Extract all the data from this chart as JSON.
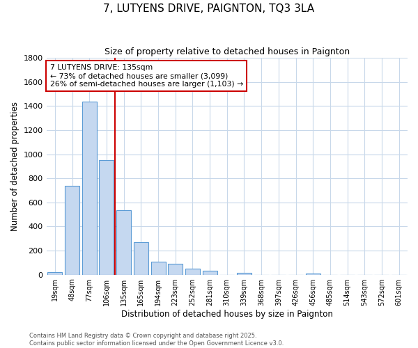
{
  "title": "7, LUTYENS DRIVE, PAIGNTON, TQ3 3LA",
  "subtitle": "Size of property relative to detached houses in Paignton",
  "xlabel": "Distribution of detached houses by size in Paignton",
  "ylabel": "Number of detached properties",
  "bar_labels": [
    "19sqm",
    "48sqm",
    "77sqm",
    "106sqm",
    "135sqm",
    "165sqm",
    "194sqm",
    "223sqm",
    "252sqm",
    "281sqm",
    "310sqm",
    "339sqm",
    "368sqm",
    "397sqm",
    "426sqm",
    "456sqm",
    "485sqm",
    "514sqm",
    "543sqm",
    "572sqm",
    "601sqm"
  ],
  "bar_values": [
    20,
    740,
    1435,
    950,
    535,
    270,
    105,
    90,
    50,
    30,
    0,
    15,
    0,
    0,
    0,
    10,
    0,
    0,
    0,
    0,
    0
  ],
  "bar_color": "#c5d8f0",
  "bar_edge_color": "#5b9bd5",
  "vline_x_index": 4,
  "vline_color": "#cc0000",
  "annotation_title": "7 LUTYENS DRIVE: 135sqm",
  "annotation_line1": "← 73% of detached houses are smaller (3,099)",
  "annotation_line2": "26% of semi-detached houses are larger (1,103) →",
  "annotation_box_color": "#ffffff",
  "annotation_box_edge": "#cc0000",
  "ylim": [
    0,
    1800
  ],
  "yticks": [
    0,
    200,
    400,
    600,
    800,
    1000,
    1200,
    1400,
    1600,
    1800
  ],
  "footnote1": "Contains HM Land Registry data © Crown copyright and database right 2025.",
  "footnote2": "Contains public sector information licensed under the Open Government Licence v3.0.",
  "bg_color": "#ffffff",
  "grid_color": "#c8d8ea"
}
